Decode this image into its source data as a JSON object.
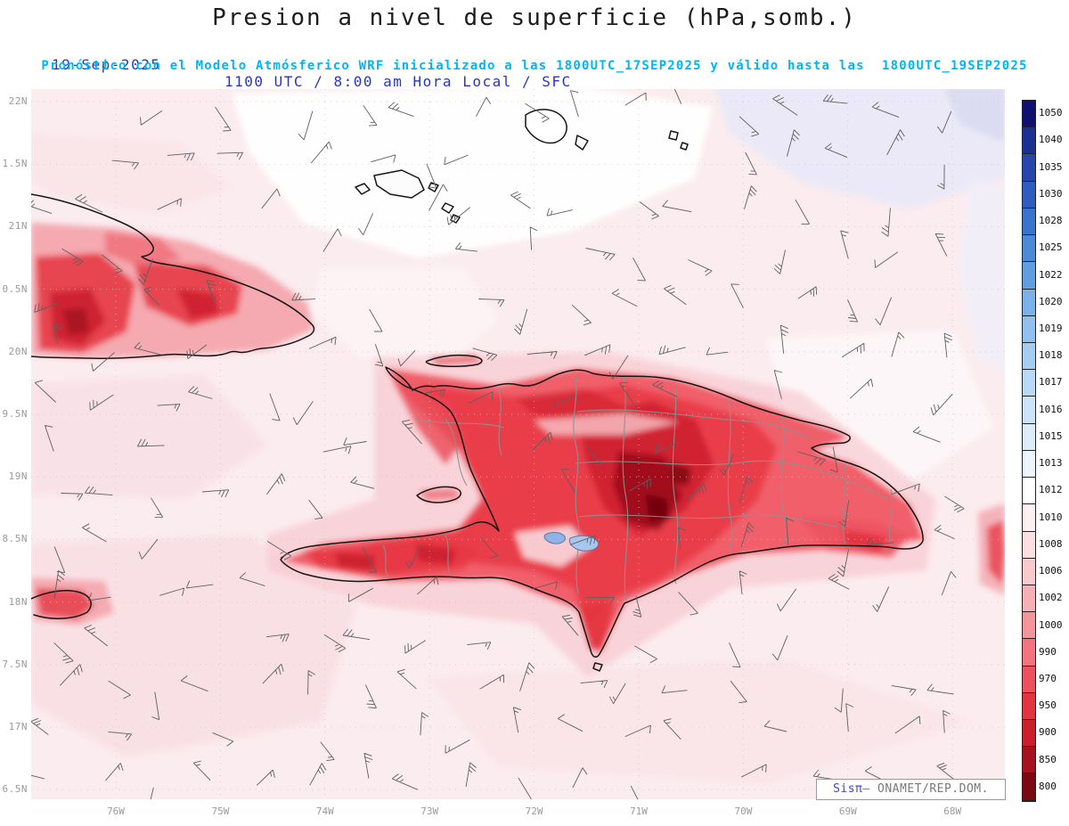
{
  "header": {
    "title": "Presion a nivel de superficie (hPa,somb.)",
    "date": "19-Sep-2025",
    "time": "1100 UTC / 8:00 am Hora Local / SFC",
    "forecast": "Pronóstico con el Modelo Atmósferico WRF inicializado a las 1800UTC_17SEP2025 y válido hasta las  1800UTC_19SEP2025"
  },
  "watermark": {
    "brand": "Sisπ",
    "text": "– ONAMET/REP.DOM."
  },
  "chart_data": {
    "type": "heatmap",
    "title": "Presion a nivel de superficie (hPa,somb.)",
    "units": "hPa",
    "model": "WRF",
    "run_date": "19-Sep-2025",
    "valid_time": "1100 UTC / 8:00 am Hora Local / SFC",
    "initialized": "1800UTC_17SEP2025",
    "valid_until": "1800UTC_19SEP2025",
    "level": "SFC",
    "x_axis": {
      "ticks": [
        "76W",
        "75W",
        "74W",
        "73W",
        "72W",
        "71W",
        "70W",
        "69W",
        "68W"
      ]
    },
    "y_axis": {
      "ticks": [
        "22N",
        "1.5N",
        "21N",
        "0.5N",
        "20N",
        "9.5N",
        "19N",
        "8.5N",
        "18N",
        "7.5N",
        "17N",
        "6.5N"
      ]
    },
    "colorbar": {
      "levels": [
        1050,
        1040,
        1035,
        1030,
        1028,
        1025,
        1022,
        1020,
        1019,
        1018,
        1017,
        1016,
        1015,
        1013,
        1012,
        1010,
        1008,
        1006,
        1002,
        1000,
        990,
        970,
        950,
        900,
        850,
        800
      ],
      "colors": [
        "#101070",
        "#1c2f92",
        "#2646ab",
        "#2f5dbf",
        "#3b74cc",
        "#4c8ad8",
        "#619ee0",
        "#79b1e8",
        "#8fc0ee",
        "#a5cdf2",
        "#bad9f6",
        "#cde3f8",
        "#deecfa",
        "#eef4fc",
        "#ffffff",
        "#fdf0f1",
        "#fbdfe1",
        "#f9cacd",
        "#f7b0b5",
        "#f4949b",
        "#f1747e",
        "#ec515d",
        "#e43341",
        "#cc1f2d",
        "#a6121f",
        "#7a0913"
      ]
    },
    "region": "Eastern Cuba, Hispaniola (Haiti / Dominican Republic) and surrounding waters",
    "overlays": [
      "wind barbs",
      "coastlines",
      "province boundaries",
      "lakes"
    ]
  }
}
